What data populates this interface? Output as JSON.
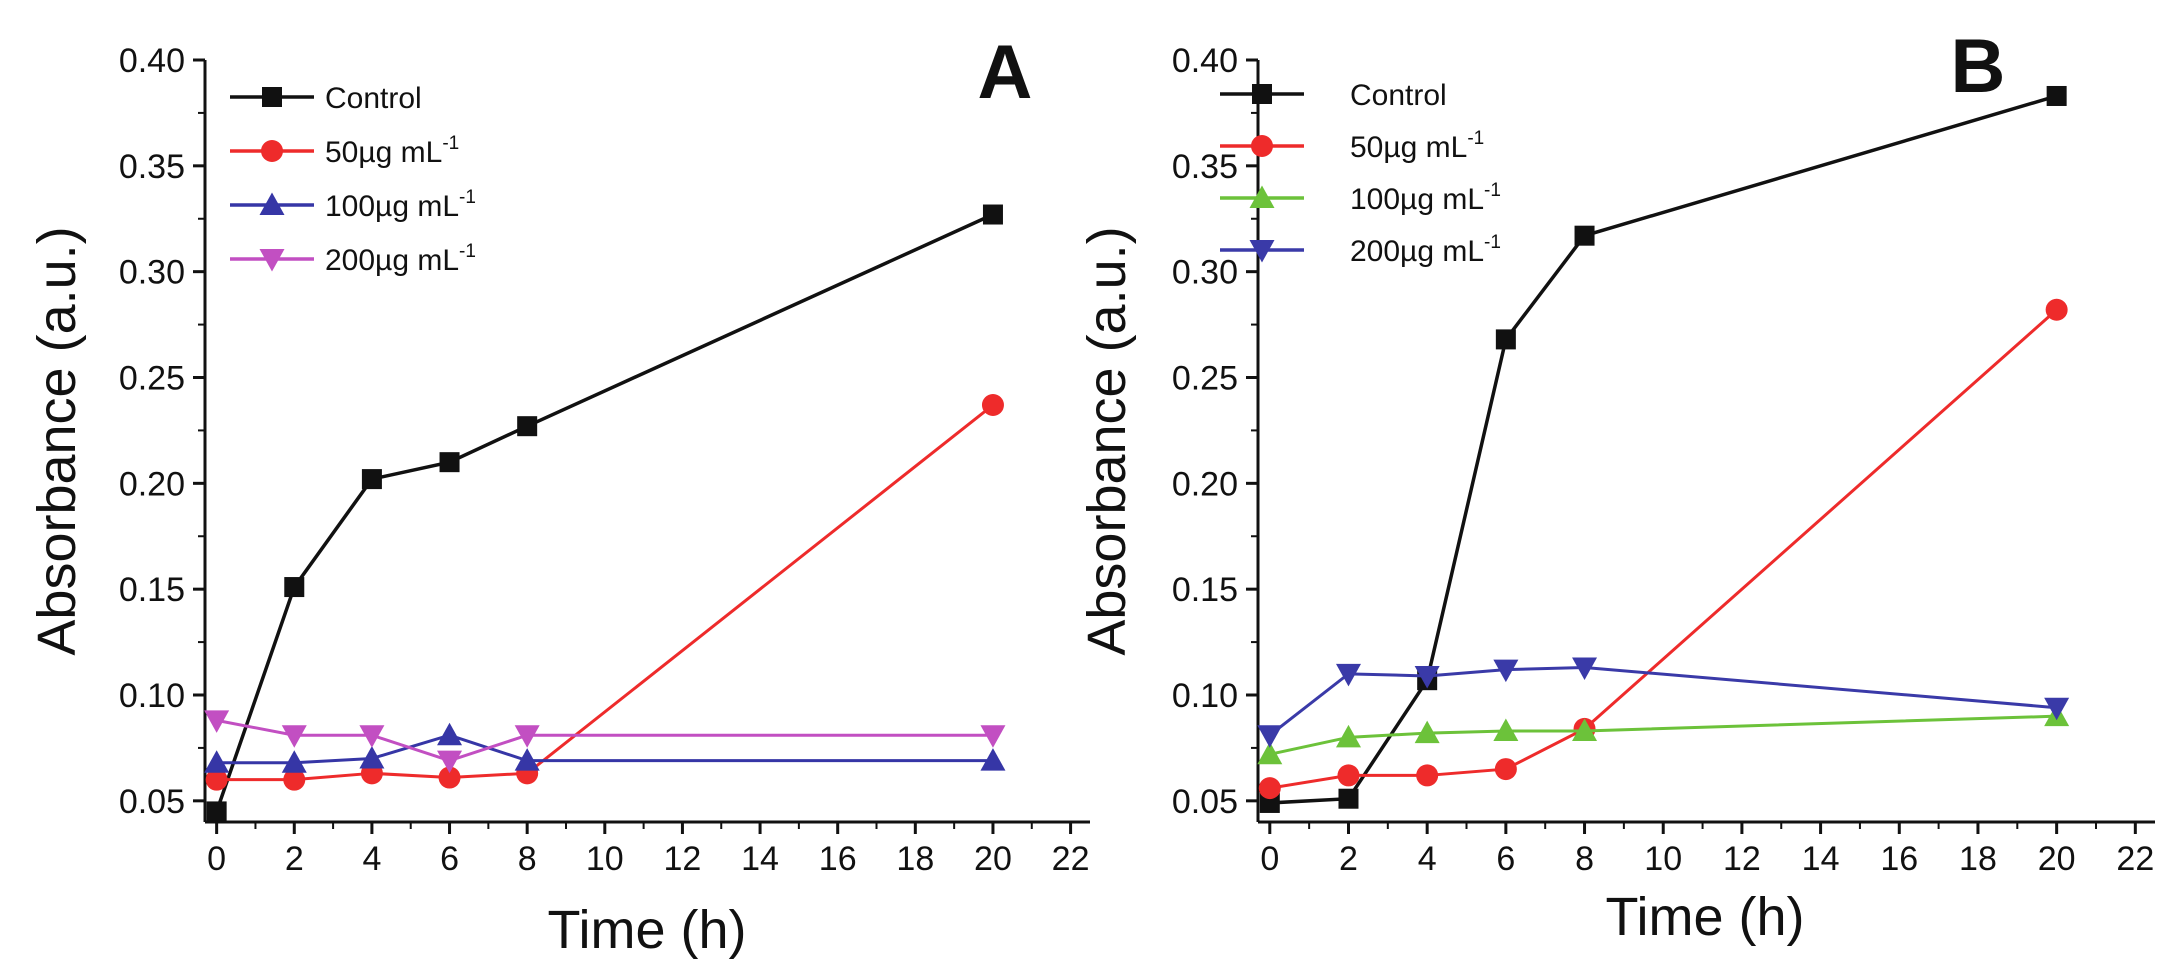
{
  "chart_data": [
    {
      "type": "line",
      "panel_label": "A",
      "xlabel": "Time (h)",
      "ylabel": "Absorbance (a.u.)",
      "xlim": [
        -0.3,
        22.5
      ],
      "ylim": [
        0.04,
        0.4
      ],
      "xticks": [
        "0",
        "2",
        "4",
        "6",
        "8",
        "10",
        "12",
        "14",
        "16",
        "18",
        "20",
        "22"
      ],
      "yticks": [
        "0.05",
        "0.10",
        "0.15",
        "0.20",
        "0.25",
        "0.30",
        "0.35",
        "0.40"
      ],
      "legend_position": "top-left",
      "series": [
        {
          "name": "Control",
          "unit": "",
          "color": "#111111",
          "marker": "square",
          "x": [
            0,
            2,
            4,
            6,
            8,
            20
          ],
          "values": [
            0.045,
            0.151,
            0.202,
            0.21,
            0.227,
            0.327
          ]
        },
        {
          "name": "50µg mL",
          "unit": "-1",
          "color": "#ee2b2b",
          "marker": "circle",
          "x": [
            0,
            2,
            4,
            6,
            8,
            20
          ],
          "values": [
            0.06,
            0.06,
            0.063,
            0.061,
            0.063,
            0.237
          ]
        },
        {
          "name": "100µg mL",
          "unit": "-1",
          "color": "#3636a6",
          "marker": "triangle-up",
          "x": [
            0,
            2,
            4,
            6,
            8,
            20
          ],
          "values": [
            0.068,
            0.068,
            0.07,
            0.081,
            0.069,
            0.069
          ]
        },
        {
          "name": "200µg mL",
          "unit": "-1",
          "color": "#c24fc2",
          "marker": "triangle-down",
          "x": [
            0,
            2,
            4,
            6,
            8,
            20
          ],
          "values": [
            0.088,
            0.081,
            0.081,
            0.069,
            0.081,
            0.081
          ]
        }
      ]
    },
    {
      "type": "line",
      "panel_label": "B",
      "xlabel": "Time (h)",
      "ylabel": "Absorbance (a.u.)",
      "xlim": [
        -0.3,
        22.5
      ],
      "ylim": [
        0.04,
        0.4
      ],
      "xticks": [
        "0",
        "2",
        "4",
        "6",
        "8",
        "10",
        "12",
        "14",
        "16",
        "18",
        "20",
        "22"
      ],
      "yticks": [
        "0.05",
        "0.10",
        "0.15",
        "0.20",
        "0.25",
        "0.30",
        "0.35",
        "0.40"
      ],
      "legend_position": "top-left",
      "series": [
        {
          "name": "Control",
          "unit": "",
          "color": "#111111",
          "marker": "square",
          "x": [
            0,
            2,
            4,
            6,
            8,
            20
          ],
          "values": [
            0.049,
            0.051,
            0.107,
            0.268,
            0.317,
            0.383
          ]
        },
        {
          "name": "50µg mL",
          "unit": "-1",
          "color": "#ee2b2b",
          "marker": "circle",
          "x": [
            0,
            2,
            4,
            6,
            8,
            20
          ],
          "values": [
            0.056,
            0.062,
            0.062,
            0.065,
            0.084,
            0.282
          ]
        },
        {
          "name": "100µg mL",
          "unit": "-1",
          "color": "#6cc23a",
          "marker": "triangle-up",
          "x": [
            0,
            2,
            4,
            6,
            8,
            20
          ],
          "values": [
            0.072,
            0.08,
            0.082,
            0.083,
            0.083,
            0.09
          ]
        },
        {
          "name": "200µg mL",
          "unit": "-1",
          "color": "#3a3aa8",
          "marker": "triangle-down",
          "x": [
            0,
            2,
            4,
            6,
            8,
            20
          ],
          "values": [
            0.081,
            0.11,
            0.109,
            0.112,
            0.113,
            0.094
          ]
        }
      ]
    }
  ]
}
